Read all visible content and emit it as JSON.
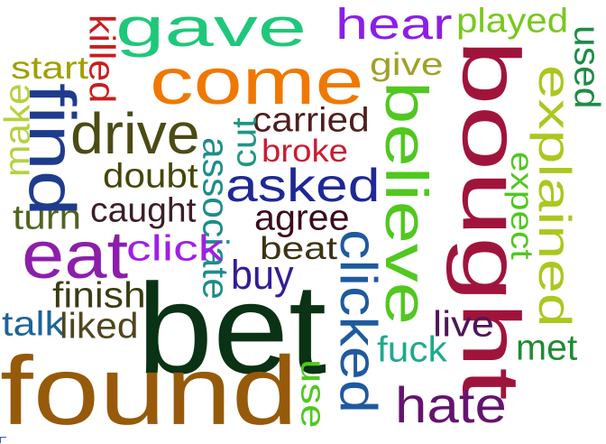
{
  "words": [
    {
      "key": "gave",
      "text": "gave",
      "color": "#1ec87a"
    },
    {
      "key": "hear",
      "text": "hear",
      "color": "#8c1ee6"
    },
    {
      "key": "played",
      "text": "played",
      "color": "#78c81e"
    },
    {
      "key": "used",
      "text": "used",
      "color": "#1e8c46"
    },
    {
      "key": "killed",
      "text": "killed",
      "color": "#c81e1e"
    },
    {
      "key": "start",
      "text": "start",
      "color": "#a0a000"
    },
    {
      "key": "come",
      "text": "come",
      "color": "#f07800"
    },
    {
      "key": "give",
      "text": "give",
      "color": "#a0a028"
    },
    {
      "key": "bought",
      "text": "bought",
      "color": "#a0143c"
    },
    {
      "key": "make",
      "text": "make",
      "color": "#b4d23c"
    },
    {
      "key": "find",
      "text": "find",
      "color": "#1e3c8c"
    },
    {
      "key": "explained",
      "text": "explained",
      "color": "#aac81e"
    },
    {
      "key": "drive",
      "text": "drive",
      "color": "#4b4b14"
    },
    {
      "key": "carried",
      "text": "carried",
      "color": "#501e1e"
    },
    {
      "key": "believe",
      "text": "believe",
      "color": "#50c81e"
    },
    {
      "key": "cut",
      "text": "cut",
      "color": "#1e9682"
    },
    {
      "key": "broke",
      "text": "broke",
      "color": "#c81e32"
    },
    {
      "key": "expect",
      "text": "expect",
      "color": "#50c81e"
    },
    {
      "key": "doubt",
      "text": "doubt",
      "color": "#46460a"
    },
    {
      "key": "associate",
      "text": "associate",
      "color": "#1e8c8c"
    },
    {
      "key": "asked",
      "text": "asked",
      "color": "#1e2896"
    },
    {
      "key": "caught",
      "text": "caught",
      "color": "#3c1e28"
    },
    {
      "key": "turn",
      "text": "turn",
      "color": "#50641e"
    },
    {
      "key": "agree",
      "text": "agree",
      "color": "#3c0a1e"
    },
    {
      "key": "eat",
      "text": "eat",
      "color": "#8c1eaa"
    },
    {
      "key": "click",
      "text": "click",
      "color": "#a01ee6"
    },
    {
      "key": "beat",
      "text": "beat",
      "color": "#3c3214"
    },
    {
      "key": "buy",
      "text": "buy",
      "color": "#321e96"
    },
    {
      "key": "clicked",
      "text": "clicked",
      "color": "#1e5aa0"
    },
    {
      "key": "finish",
      "text": "finish",
      "color": "#3c3c14"
    },
    {
      "key": "talk",
      "text": "talk",
      "color": "#1e6496"
    },
    {
      "key": "liked",
      "text": "liked",
      "color": "#50461e"
    },
    {
      "key": "bet",
      "text": "bet",
      "color": "#0a3214"
    },
    {
      "key": "live",
      "text": "live",
      "color": "#50145a"
    },
    {
      "key": "fuck",
      "text": "fuck",
      "color": "#1eaa8c"
    },
    {
      "key": "met",
      "text": "met",
      "color": "#1e8c32"
    },
    {
      "key": "found",
      "text": "found",
      "color": "#965a0a"
    },
    {
      "key": "use",
      "text": "use",
      "color": "#50c81e"
    },
    {
      "key": "hate",
      "text": "hate",
      "color": "#64146e"
    }
  ]
}
